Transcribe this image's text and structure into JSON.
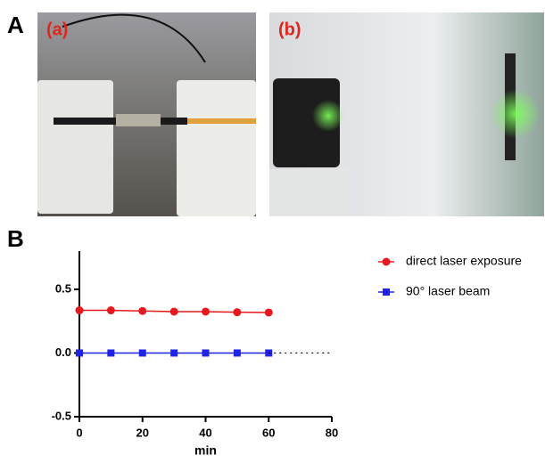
{
  "panels": {
    "a_label": "A",
    "photo_a_label": "(a)",
    "photo_b_label": "(b)",
    "b_label": "B"
  },
  "chart_data": {
    "type": "line",
    "x_label": "min",
    "x": [
      0,
      10,
      20,
      30,
      40,
      50,
      60
    ],
    "series": [
      {
        "name": "direct laser exposure",
        "color": "#e8191e",
        "marker": "circle",
        "values": [
          0.335,
          0.335,
          0.33,
          0.325,
          0.325,
          0.32,
          0.318
        ]
      },
      {
        "name": "90° laser beam",
        "color": "#1f22e8",
        "marker": "square",
        "values": [
          0,
          0,
          0,
          0,
          0,
          0,
          0
        ]
      }
    ],
    "xlim": [
      0,
      80
    ],
    "xticks": [
      0,
      20,
      40,
      60,
      80
    ],
    "ylim": [
      -0.5,
      0.8
    ],
    "yticks": [
      0.5,
      {
        "value": 0,
        "label": "0.0"
      },
      -0.5
    ]
  }
}
